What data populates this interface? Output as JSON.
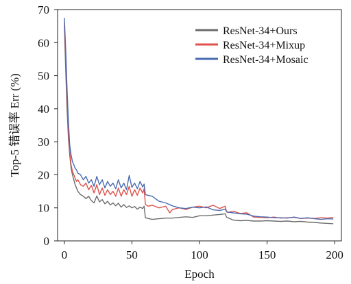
{
  "chart_data": {
    "type": "line",
    "title": "",
    "xlabel": "Epoch",
    "ylabel": "Top-5 错误率 Err (%)",
    "xlim": [
      -5,
      205
    ],
    "ylim": [
      0,
      70
    ],
    "xticks": [
      0,
      50,
      100,
      150,
      200
    ],
    "yticks": [
      0,
      10,
      20,
      30,
      40,
      50,
      60,
      70
    ],
    "grid": false,
    "legend_position": "top-right",
    "series": [
      {
        "name": "ResNet-34+Ours",
        "color": "#6b6b6b",
        "x": [
          0,
          1,
          2,
          3,
          4,
          5,
          6,
          7,
          8,
          9,
          10,
          12,
          14,
          16,
          18,
          20,
          22,
          24,
          26,
          28,
          30,
          32,
          34,
          36,
          38,
          40,
          42,
          44,
          46,
          48,
          50,
          52,
          54,
          56,
          58,
          59,
          60,
          62,
          65,
          70,
          75,
          80,
          85,
          90,
          95,
          100,
          105,
          110,
          115,
          119,
          120,
          121,
          125,
          130,
          135,
          140,
          145,
          150,
          155,
          160,
          165,
          170,
          175,
          180,
          185,
          190,
          195,
          199
        ],
        "y": [
          65,
          52,
          40,
          31,
          26,
          22,
          20,
          18.5,
          17,
          16,
          15,
          14,
          13.5,
          12.8,
          13.5,
          12.2,
          11.5,
          13.6,
          11.8,
          12.5,
          11.2,
          12,
          10.9,
          11.5,
          10.6,
          11.4,
          10.2,
          11,
          10.1,
          10.6,
          10,
          10.4,
          9.6,
          10.2,
          9.8,
          10.5,
          7,
          6.8,
          6.5,
          6.7,
          6.9,
          6.9,
          7.1,
          7.3,
          7.1,
          7.6,
          7.6,
          7.8,
          8,
          8.2,
          7.2,
          7,
          6.3,
          6.1,
          6.2,
          6,
          6,
          6.1,
          6,
          5.9,
          6,
          5.8,
          5.9,
          5.7,
          5.6,
          5.4,
          5.3,
          5.2
        ]
      },
      {
        "name": "ResNet-34+Mixup",
        "color": "#e0504a",
        "x": [
          0,
          1,
          2,
          3,
          4,
          5,
          6,
          7,
          8,
          9,
          10,
          12,
          14,
          16,
          18,
          20,
          22,
          24,
          26,
          28,
          30,
          32,
          34,
          36,
          38,
          40,
          42,
          44,
          46,
          48,
          50,
          52,
          54,
          56,
          58,
          59,
          60,
          62,
          65,
          70,
          75,
          78,
          80,
          85,
          90,
          95,
          100,
          105,
          110,
          115,
          119,
          120,
          121,
          125,
          130,
          135,
          140,
          145,
          150,
          155,
          160,
          165,
          170,
          175,
          180,
          185,
          190,
          195,
          199
        ],
        "y": [
          66,
          56,
          44,
          33,
          27,
          23,
          21,
          20,
          19,
          18,
          18.5,
          17,
          16.5,
          17.5,
          15.5,
          16.8,
          14.5,
          17,
          14,
          16,
          13.8,
          15.5,
          14,
          15,
          13.5,
          16,
          13.5,
          15.5,
          14,
          16.5,
          13.5,
          15.5,
          13.8,
          16,
          14.5,
          15.8,
          11,
          10.5,
          10.8,
          10,
          10.5,
          8.5,
          9.5,
          10,
          9.5,
          10.2,
          10.5,
          10,
          10.8,
          9.8,
          10.5,
          8.8,
          8.6,
          9,
          8.3,
          8.5,
          7.2,
          7.1,
          7,
          7.2,
          6.9,
          7,
          7.1,
          6.8,
          6.9,
          6.8,
          7,
          6.9,
          7.1
        ]
      },
      {
        "name": "ResNet-34+Mosaic",
        "color": "#4a6ab0",
        "x": [
          0,
          1,
          2,
          3,
          4,
          5,
          6,
          7,
          8,
          9,
          10,
          12,
          14,
          16,
          18,
          20,
          22,
          24,
          26,
          28,
          30,
          32,
          34,
          36,
          38,
          40,
          42,
          44,
          46,
          48,
          50,
          52,
          54,
          56,
          58,
          59,
          60,
          62,
          65,
          70,
          75,
          80,
          85,
          90,
          95,
          100,
          105,
          110,
          115,
          119,
          120,
          121,
          125,
          130,
          135,
          140,
          145,
          150,
          155,
          160,
          165,
          170,
          175,
          180,
          185,
          190,
          195,
          199
        ],
        "y": [
          67.5,
          58,
          46,
          36,
          29,
          26,
          24,
          23,
          22,
          21.5,
          20.5,
          20,
          18.5,
          19.5,
          17.5,
          18.5,
          16.5,
          19.5,
          17,
          18.5,
          16,
          18,
          16.5,
          17.5,
          15.8,
          18.5,
          16,
          17.5,
          15.5,
          19.8,
          16.2,
          17.5,
          15.8,
          18,
          16.3,
          17.2,
          14,
          13.8,
          13.5,
          12,
          11.5,
          10.6,
          10,
          9.8,
          10.2,
          10,
          10.3,
          9.4,
          9.2,
          9.6,
          8.9,
          8.7,
          8.5,
          8.2,
          8.1,
          7.5,
          7.3,
          7.2,
          7,
          7,
          6.9,
          7.2,
          6.8,
          7,
          6.7,
          6.5,
          6.7,
          6.6
        ]
      }
    ]
  }
}
